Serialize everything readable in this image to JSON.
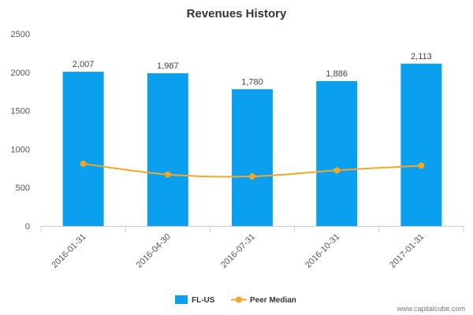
{
  "chart_data": {
    "type": "bar",
    "title": "Revenues History",
    "categories": [
      "2016-01-31",
      "2016-04-30",
      "2016-07-31",
      "2016-10-31",
      "2017-01-31"
    ],
    "series": [
      {
        "name": "FL-US",
        "type": "bar",
        "color": "#0aa0ef",
        "values": [
          2007,
          1987,
          1780,
          1886,
          2113
        ],
        "labels": [
          "2,007",
          "1,987",
          "1,780",
          "1,886",
          "2,113"
        ]
      },
      {
        "name": "Peer Median",
        "type": "line",
        "color": "#f5a623",
        "values": [
          810,
          670,
          645,
          725,
          785
        ]
      }
    ],
    "yticks": [
      "0",
      "500",
      "1000",
      "1500",
      "2000",
      "2500"
    ],
    "ylim": [
      0,
      2500
    ],
    "grid": false,
    "legend_position": "bottom-center"
  },
  "credit": "www.capitalcube.com"
}
